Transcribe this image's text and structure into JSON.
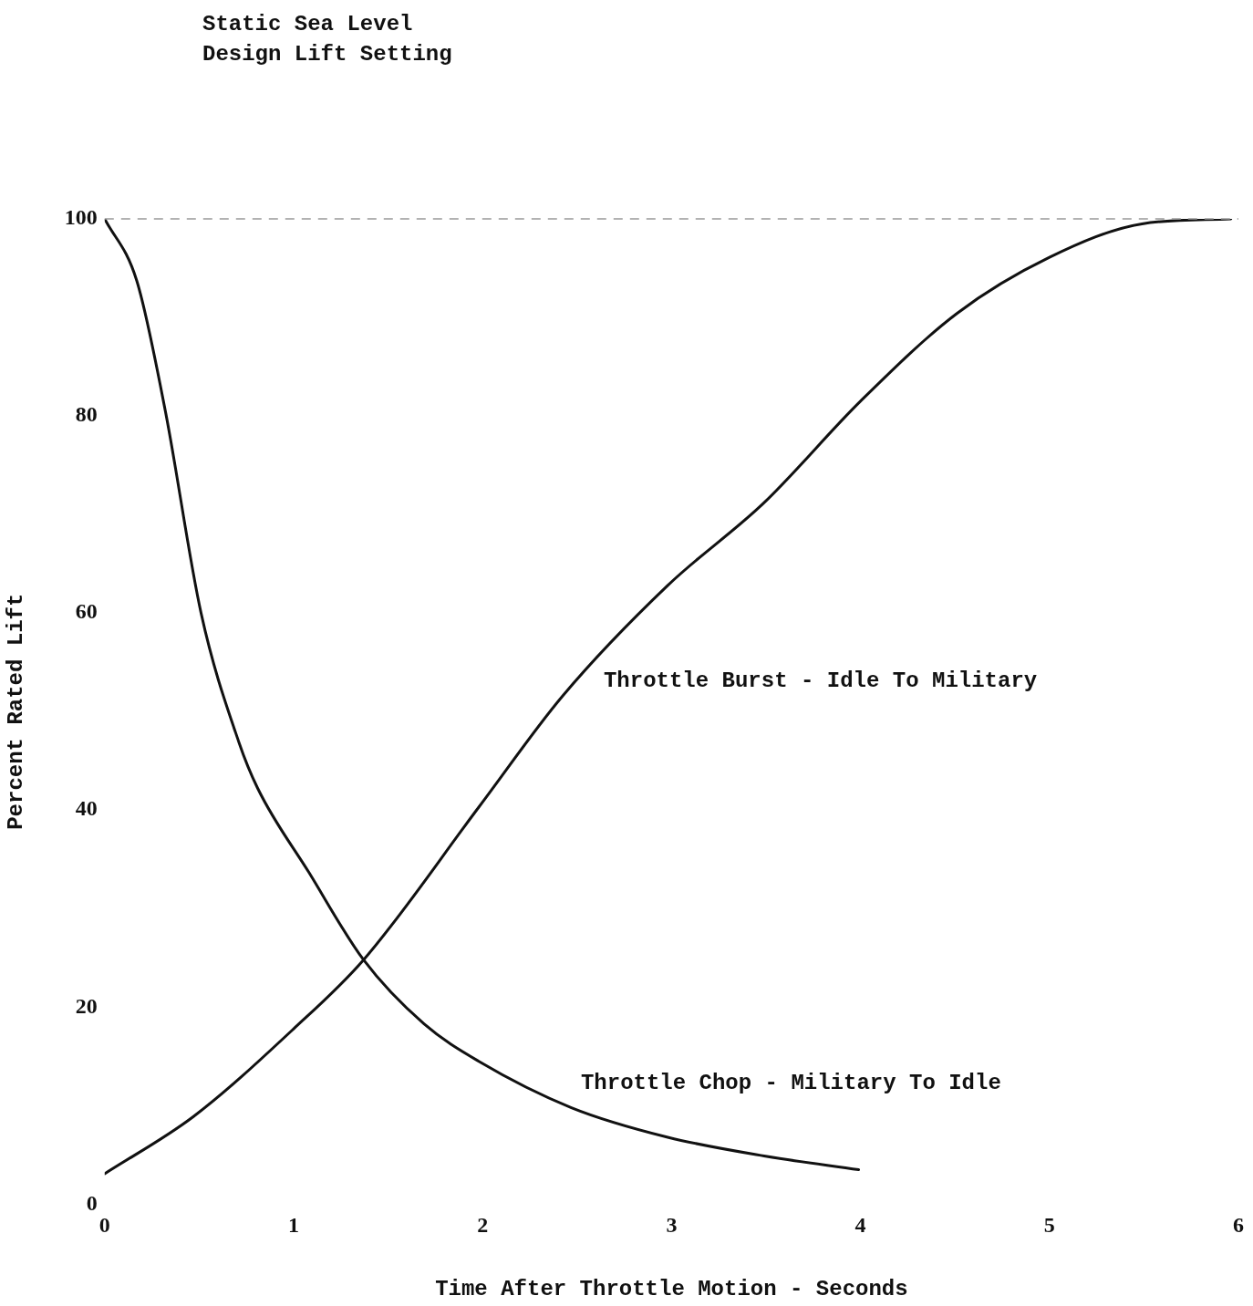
{
  "chart_data": {
    "type": "line",
    "title": "Static Sea Level",
    "subtitle": "Design Lift Setting",
    "xlabel": "Time After Throttle Motion - Seconds",
    "ylabel": "Percent Rated Lift",
    "xlim": [
      0,
      6
    ],
    "xticks": [
      0,
      1,
      2,
      3,
      4,
      5,
      6
    ],
    "ylim": [
      0,
      100
    ],
    "yticks": [
      0,
      20,
      40,
      60,
      80,
      100
    ],
    "grid": false,
    "legend": false,
    "marker": "none",
    "line_style": "solid",
    "ref_lines": [
      {
        "axis": "y",
        "value": 100,
        "label": null,
        "color": "#999999",
        "line_style": "dashed"
      }
    ],
    "series": [
      {
        "name": "Throttle Chop - Military To Idle",
        "color": "#111111",
        "x": [
          0,
          0.17,
          0.32,
          0.51,
          0.71,
          0.81,
          1.08,
          1.37,
          1.69,
          1.98,
          2.47,
          2.98,
          3.49,
          3.99
        ],
        "values": [
          100,
          93.7,
          80.6,
          60,
          46.9,
          42.2,
          33.7,
          24.8,
          18.3,
          14.5,
          9.8,
          6.8,
          4.9,
          3.5
        ]
      },
      {
        "name": "Throttle Burst - Idle To Military",
        "color": "#111111",
        "x": [
          0,
          0.47,
          1,
          1.37,
          1.98,
          2.42,
          2.98,
          3.49,
          4,
          4.51,
          5,
          5.49,
          5.96
        ],
        "values": [
          3.1,
          8.9,
          17.8,
          24.8,
          40.3,
          51.5,
          62.8,
          71.2,
          81.5,
          90.4,
          96.1,
          99.5,
          100
        ]
      }
    ]
  }
}
